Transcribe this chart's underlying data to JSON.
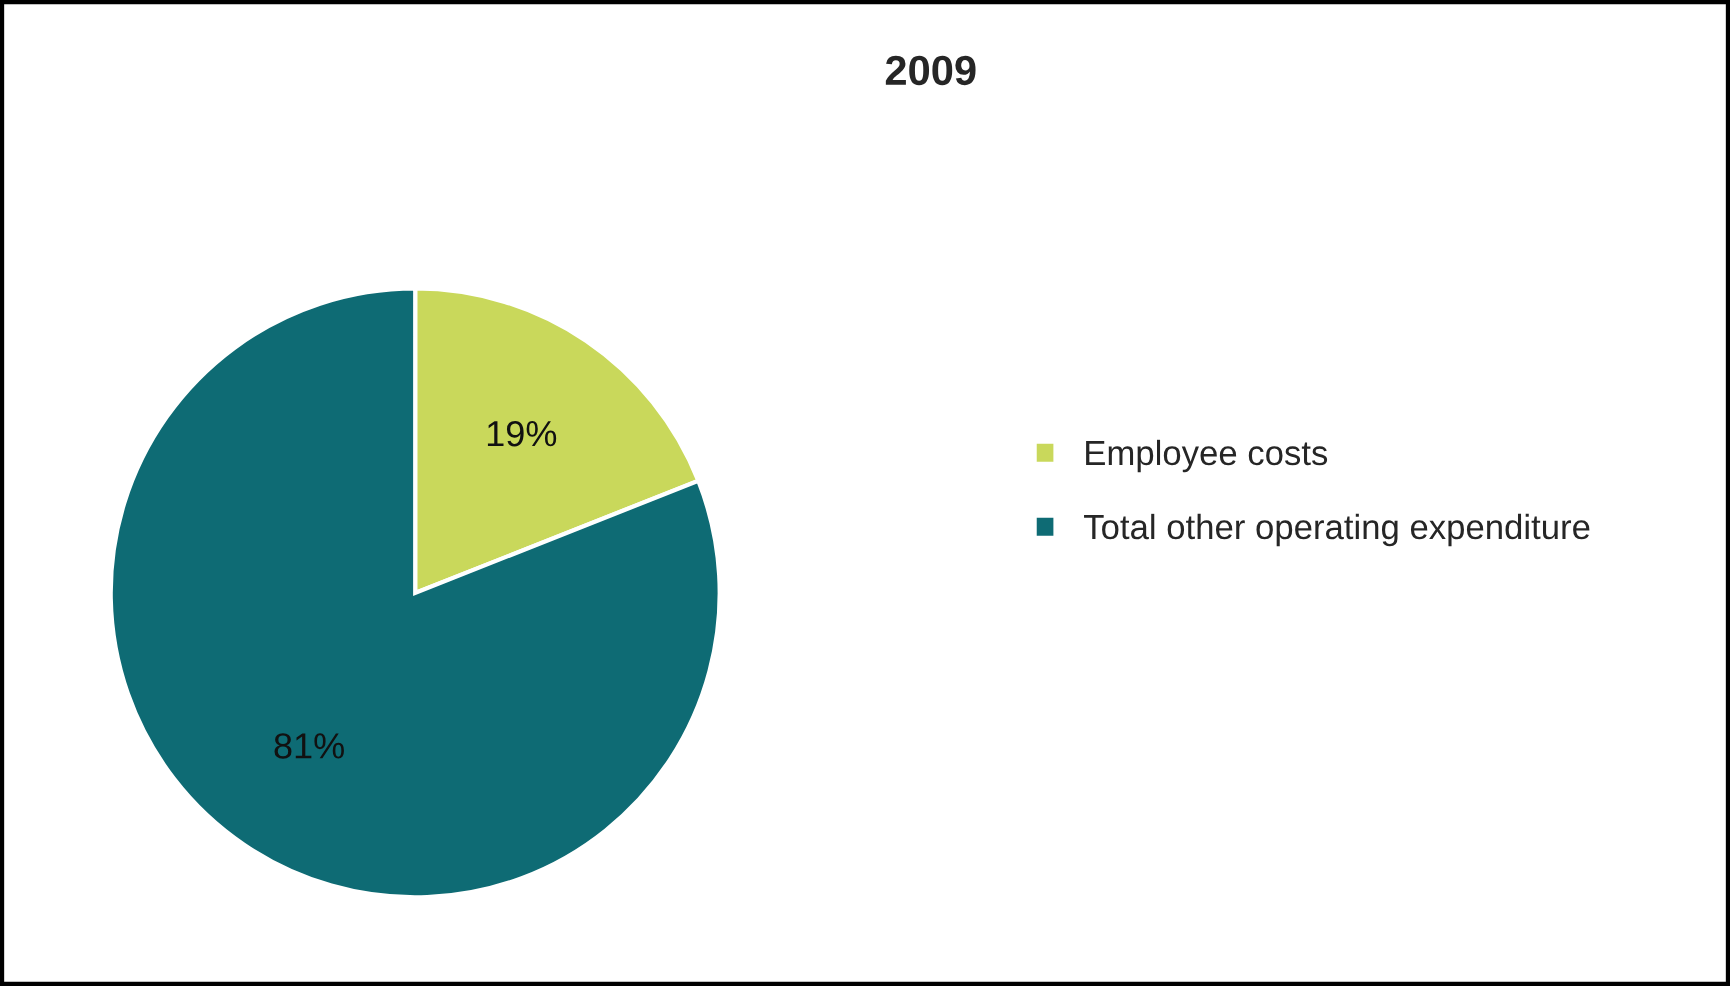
{
  "chart_data": {
    "type": "pie",
    "title": "2009",
    "categories": [
      "Employee costs",
      "Total other operating expenditure"
    ],
    "values": [
      19,
      81
    ],
    "colors": [
      "#c9d85b",
      "#0e6b74"
    ],
    "value_labels": [
      "19%",
      "81%"
    ],
    "legend": "right"
  }
}
